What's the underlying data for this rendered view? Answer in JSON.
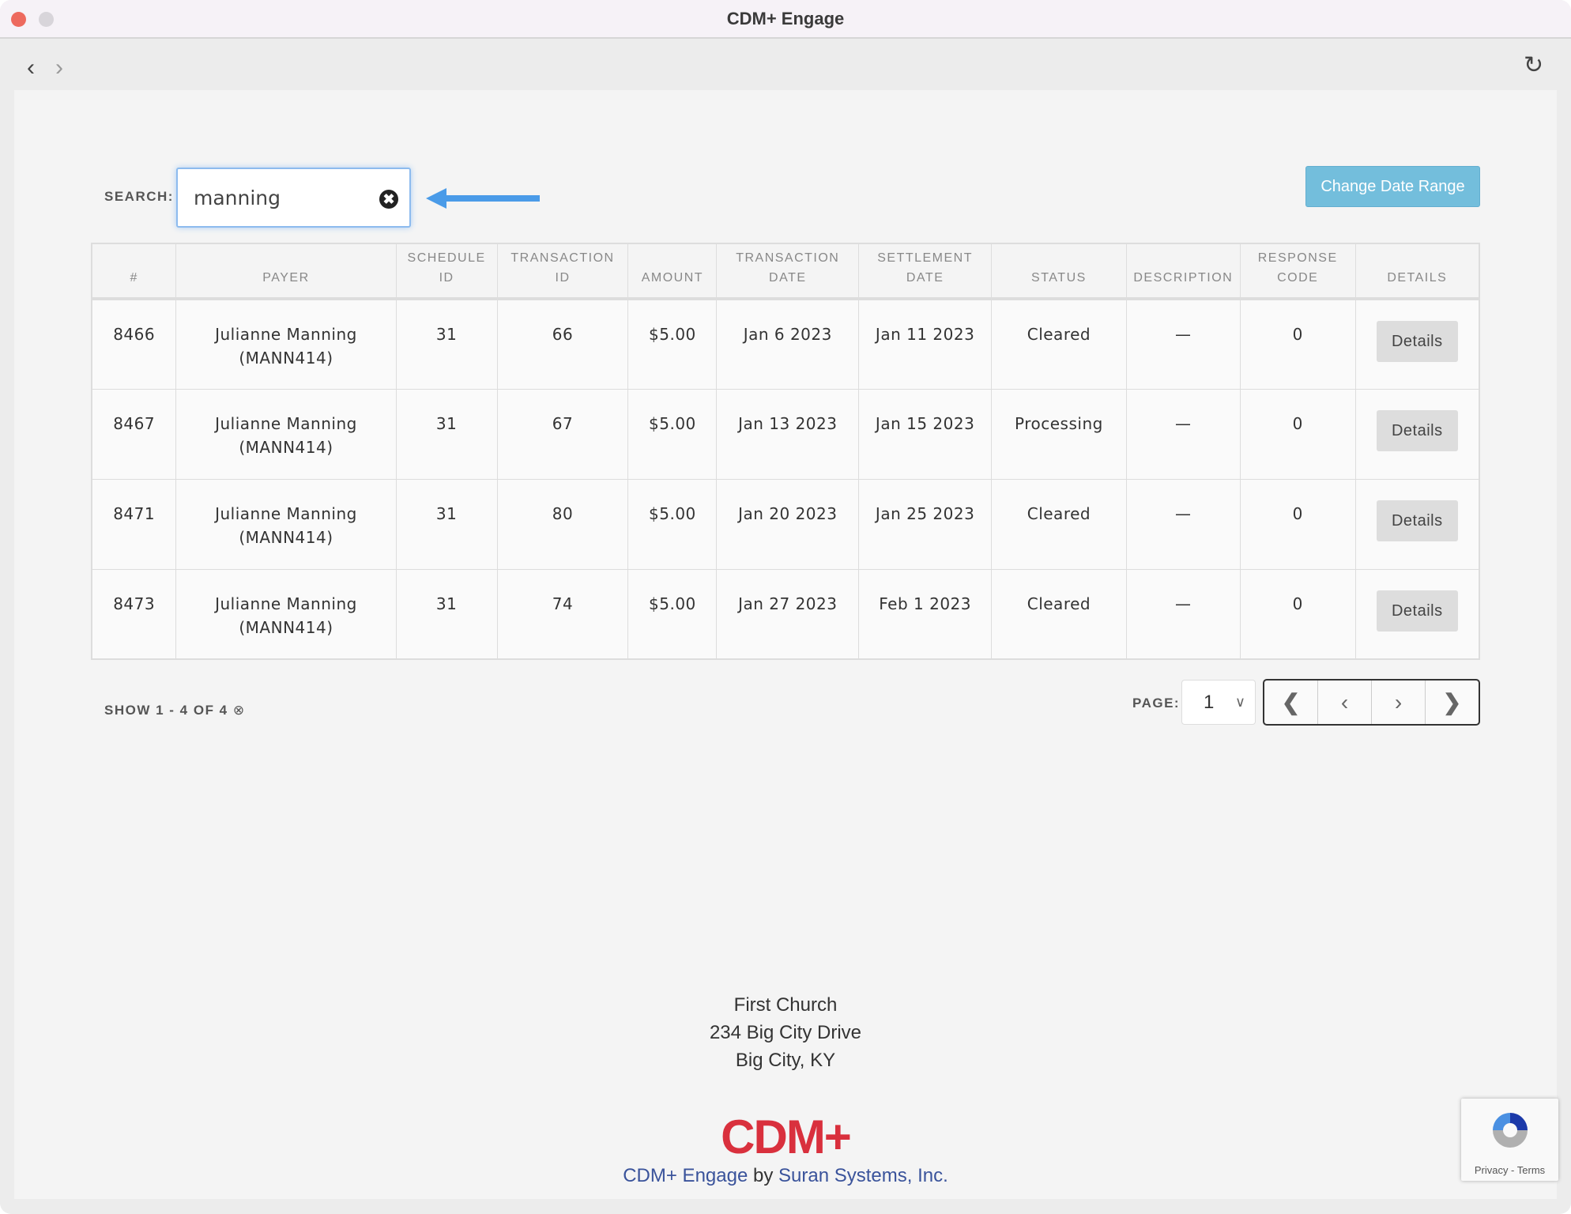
{
  "window": {
    "title": "CDM+ Engage"
  },
  "toolbar": {
    "back_icon": "chevron-left-icon",
    "forward_icon": "chevron-right-icon",
    "reload_icon": "reload-icon"
  },
  "search": {
    "label": "SEARCH:",
    "value": "manning"
  },
  "change_date_range": "Change Date Range",
  "table": {
    "headers": [
      "#",
      "PAYER",
      "SCHEDULE ID",
      "TRANSACTION ID",
      "AMOUNT",
      "TRANSACTION DATE",
      "SETTLEMENT DATE",
      "STATUS",
      "DESCRIPTION",
      "RESPONSE CODE",
      "DETAILS"
    ],
    "rows": [
      {
        "id": "8466",
        "payer": "Julianne Manning (MANN414)",
        "schedule": "31",
        "transaction": "66",
        "amount": "$5.00",
        "tdate": "Jan 6 2023",
        "sdate": "Jan 11 2023",
        "status": "Cleared",
        "description": "—",
        "code": "0",
        "details": "Details"
      },
      {
        "id": "8467",
        "payer": "Julianne Manning (MANN414)",
        "schedule": "31",
        "transaction": "67",
        "amount": "$5.00",
        "tdate": "Jan 13 2023",
        "sdate": "Jan 15 2023",
        "status": "Processing",
        "description": "—",
        "code": "0",
        "details": "Details"
      },
      {
        "id": "8471",
        "payer": "Julianne Manning (MANN414)",
        "schedule": "31",
        "transaction": "80",
        "amount": "$5.00",
        "tdate": "Jan 20 2023",
        "sdate": "Jan 25 2023",
        "status": "Cleared",
        "description": "—",
        "code": "0",
        "details": "Details"
      },
      {
        "id": "8473",
        "payer": "Julianne Manning (MANN414)",
        "schedule": "31",
        "transaction": "74",
        "amount": "$5.00",
        "tdate": "Jan 27 2023",
        "sdate": "Feb 1 2023",
        "status": "Cleared",
        "description": "—",
        "code": "0",
        "details": "Details"
      }
    ]
  },
  "summary": "SHOW 1 - 4 OF 4",
  "pagination": {
    "label": "PAGE:",
    "current": "1"
  },
  "footer": {
    "lines": [
      "First Church",
      "234 Big City Drive",
      "Big City, KY"
    ],
    "logo": "CDM+",
    "product": "CDM+ Engage",
    "by": "by",
    "company": "Suran Systems, Inc."
  },
  "recaptcha": {
    "text": "Privacy - Terms"
  },
  "colors": {
    "accent": "#73bedc",
    "arrow": "#4a9be8",
    "brand_red": "#d9303d",
    "link": "#3a539b"
  }
}
